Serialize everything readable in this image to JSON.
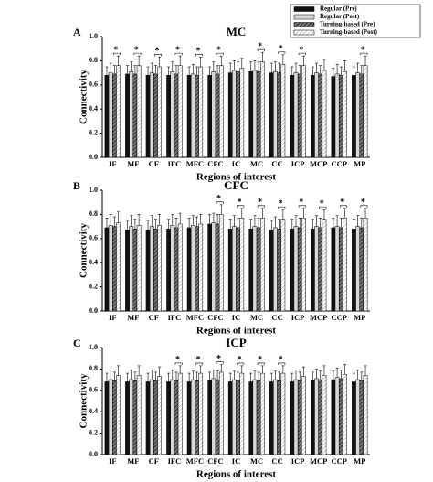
{
  "chart_data": [
    {
      "type": "bar",
      "label": "A",
      "title": "MC",
      "xlabel": "Regions of interest",
      "ylabel": "Connectivity",
      "categories": [
        "IF",
        "MF",
        "CF",
        "IFC",
        "MFC",
        "CFC",
        "IC",
        "MC",
        "CC",
        "ICP",
        "MCP",
        "CCP",
        "MP"
      ],
      "ylim": [
        0,
        1
      ],
      "yticks": [
        {
          "value": 0,
          "label": "0.0"
        },
        0.2,
        0.4,
        0.6,
        0.8,
        {
          "value": 1,
          "label": "1.0"
        }
      ],
      "legend": "top-right",
      "series": [
        {
          "name": "Regular (Pre)",
          "color": "#111111",
          "hatch": false,
          "values": [
            0.68,
            0.69,
            0.68,
            0.68,
            0.68,
            0.68,
            0.7,
            0.71,
            0.7,
            0.68,
            0.68,
            0.67,
            0.68
          ],
          "errors": [
            0.07,
            0.07,
            0.07,
            0.07,
            0.07,
            0.07,
            0.08,
            0.08,
            0.08,
            0.07,
            0.07,
            0.07,
            0.07
          ]
        },
        {
          "name": "Regular (Post)",
          "color": "#d8d8d8",
          "hatch": false,
          "values": [
            0.7,
            0.71,
            0.7,
            0.71,
            0.69,
            0.71,
            0.72,
            0.72,
            0.71,
            0.7,
            0.7,
            0.69,
            0.7
          ],
          "errors": [
            0.08,
            0.08,
            0.08,
            0.08,
            0.08,
            0.08,
            0.08,
            0.08,
            0.08,
            0.08,
            0.08,
            0.08,
            0.08
          ]
        },
        {
          "name": "Turning-based (Pre)",
          "color": "#555555",
          "hatch": true,
          "values": [
            0.69,
            0.69,
            0.69,
            0.69,
            0.68,
            0.69,
            0.71,
            0.71,
            0.7,
            0.69,
            0.69,
            0.68,
            0.69
          ],
          "errors": [
            0.07,
            0.07,
            0.07,
            0.07,
            0.07,
            0.07,
            0.08,
            0.08,
            0.08,
            0.07,
            0.07,
            0.07,
            0.07
          ]
        },
        {
          "name": "Turning-based (Post)",
          "color": "#ffffff",
          "hatch": true,
          "values": [
            0.76,
            0.76,
            0.75,
            0.76,
            0.75,
            0.76,
            0.74,
            0.79,
            0.77,
            0.76,
            0.72,
            0.71,
            0.76
          ],
          "errors": [
            0.08,
            0.08,
            0.08,
            0.08,
            0.08,
            0.08,
            0.08,
            0.08,
            0.08,
            0.08,
            0.09,
            0.09,
            0.08
          ]
        }
      ],
      "annotations": [
        {
          "text": "*",
          "category": "IF"
        },
        {
          "text": "*",
          "category": "MF"
        },
        {
          "text": "*",
          "category": "CF"
        },
        {
          "text": "*",
          "category": "IFC"
        },
        {
          "text": "*",
          "category": "MFC"
        },
        {
          "text": "*",
          "category": "CFC"
        },
        {
          "text": "*",
          "category": "MC"
        },
        {
          "text": "*",
          "category": "CC"
        },
        {
          "text": "*",
          "category": "ICP"
        },
        {
          "text": "*",
          "category": "MP"
        }
      ]
    },
    {
      "type": "bar",
      "label": "B",
      "title": "CFC",
      "xlabel": "Regions of interest",
      "ylabel": "Connectivity",
      "categories": [
        "IF",
        "MF",
        "CF",
        "IFC",
        "MFC",
        "CFC",
        "IC",
        "MC",
        "CC",
        "ICP",
        "MCP",
        "CCP",
        "MP"
      ],
      "ylim": [
        0,
        1
      ],
      "yticks": [
        {
          "value": 0,
          "label": "0.0"
        },
        0.2,
        0.4,
        0.6,
        0.8,
        {
          "value": 1,
          "label": "1.0"
        }
      ],
      "series": [
        {
          "name": "Regular (Pre)",
          "color": "#111111",
          "hatch": false,
          "values": [
            0.69,
            0.67,
            0.67,
            0.68,
            0.69,
            0.72,
            0.68,
            0.68,
            0.67,
            0.68,
            0.68,
            0.69,
            0.68
          ],
          "errors": [
            0.08,
            0.08,
            0.08,
            0.08,
            0.08,
            0.08,
            0.08,
            0.08,
            0.08,
            0.08,
            0.08,
            0.08,
            0.08
          ]
        },
        {
          "name": "Regular (Post)",
          "color": "#d8d8d8",
          "hatch": false,
          "values": [
            0.71,
            0.7,
            0.7,
            0.71,
            0.71,
            0.73,
            0.7,
            0.7,
            0.69,
            0.7,
            0.7,
            0.7,
            0.7
          ],
          "errors": [
            0.09,
            0.09,
            0.09,
            0.09,
            0.08,
            0.08,
            0.09,
            0.09,
            0.09,
            0.09,
            0.09,
            0.09,
            0.09
          ]
        },
        {
          "name": "Turning-based (Pre)",
          "color": "#555555",
          "hatch": true,
          "values": [
            0.7,
            0.68,
            0.68,
            0.69,
            0.7,
            0.72,
            0.69,
            0.69,
            0.68,
            0.69,
            0.69,
            0.69,
            0.69
          ],
          "errors": [
            0.08,
            0.08,
            0.08,
            0.08,
            0.08,
            0.08,
            0.08,
            0.08,
            0.08,
            0.08,
            0.08,
            0.08,
            0.08
          ]
        },
        {
          "name": "Turning-based (Post)",
          "color": "#ffffff",
          "hatch": true,
          "values": [
            0.73,
            0.71,
            0.71,
            0.72,
            0.72,
            0.8,
            0.77,
            0.77,
            0.76,
            0.77,
            0.76,
            0.77,
            0.77
          ],
          "errors": [
            0.09,
            0.09,
            0.09,
            0.09,
            0.08,
            0.08,
            0.08,
            0.08,
            0.08,
            0.08,
            0.08,
            0.08,
            0.08
          ]
        }
      ],
      "annotations": [
        {
          "text": "*",
          "category": "CFC"
        },
        {
          "text": "*",
          "category": "IC"
        },
        {
          "text": "*",
          "category": "MC"
        },
        {
          "text": "*",
          "category": "CC"
        },
        {
          "text": "*",
          "category": "ICP"
        },
        {
          "text": "*",
          "category": "MCP"
        },
        {
          "text": "*",
          "category": "CCP"
        },
        {
          "text": "*",
          "category": "MP"
        }
      ]
    },
    {
      "type": "bar",
      "label": "C",
      "title": "ICP",
      "xlabel": "Regions of interest",
      "ylabel": "Connectivity",
      "categories": [
        "IF",
        "MF",
        "CF",
        "IFC",
        "MFC",
        "CFC",
        "IC",
        "MC",
        "CC",
        "ICP",
        "MCP",
        "CCP",
        "MP"
      ],
      "ylim": [
        0,
        1
      ],
      "yticks": [
        {
          "value": 0,
          "label": "0.0"
        },
        0.2,
        0.4,
        0.6,
        0.8,
        {
          "value": 1,
          "label": "1.0"
        }
      ],
      "series": [
        {
          "name": "Regular (Pre)",
          "color": "#111111",
          "hatch": false,
          "values": [
            0.68,
            0.68,
            0.68,
            0.68,
            0.68,
            0.69,
            0.68,
            0.68,
            0.68,
            0.68,
            0.69,
            0.7,
            0.68
          ],
          "errors": [
            0.08,
            0.08,
            0.08,
            0.08,
            0.08,
            0.08,
            0.08,
            0.08,
            0.08,
            0.08,
            0.08,
            0.08,
            0.08
          ]
        },
        {
          "name": "Regular (Post)",
          "color": "#d8d8d8",
          "hatch": false,
          "values": [
            0.7,
            0.7,
            0.7,
            0.7,
            0.7,
            0.71,
            0.7,
            0.7,
            0.7,
            0.7,
            0.71,
            0.72,
            0.7
          ],
          "errors": [
            0.09,
            0.09,
            0.09,
            0.09,
            0.08,
            0.08,
            0.08,
            0.08,
            0.08,
            0.09,
            0.09,
            0.09,
            0.09
          ]
        },
        {
          "name": "Turning-based (Pre)",
          "color": "#555555",
          "hatch": true,
          "values": [
            0.69,
            0.69,
            0.69,
            0.69,
            0.69,
            0.7,
            0.69,
            0.69,
            0.69,
            0.69,
            0.7,
            0.71,
            0.69
          ],
          "errors": [
            0.08,
            0.08,
            0.08,
            0.08,
            0.08,
            0.08,
            0.08,
            0.08,
            0.08,
            0.08,
            0.08,
            0.08,
            0.08
          ]
        },
        {
          "name": "Turning-based (Post)",
          "color": "#ffffff",
          "hatch": true,
          "values": [
            0.74,
            0.74,
            0.73,
            0.76,
            0.76,
            0.77,
            0.76,
            0.76,
            0.76,
            0.73,
            0.74,
            0.75,
            0.74
          ],
          "errors": [
            0.09,
            0.09,
            0.09,
            0.07,
            0.07,
            0.07,
            0.07,
            0.07,
            0.07,
            0.09,
            0.09,
            0.09,
            0.09
          ]
        }
      ],
      "annotations": [
        {
          "text": "*",
          "category": "IFC"
        },
        {
          "text": "*",
          "category": "MFC"
        },
        {
          "text": "*",
          "category": "CFC"
        },
        {
          "text": "*",
          "category": "IC"
        },
        {
          "text": "*",
          "category": "MC"
        },
        {
          "text": "*",
          "category": "CC"
        }
      ]
    }
  ]
}
